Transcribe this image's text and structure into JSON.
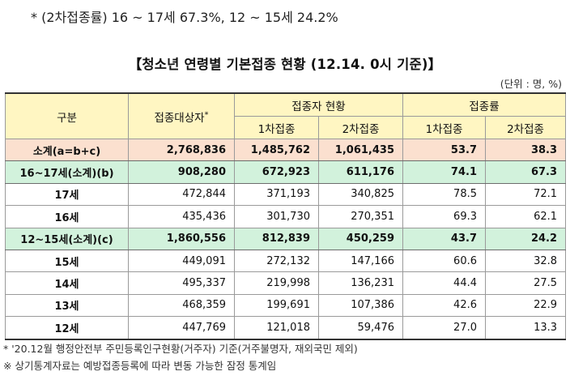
{
  "top_note": "* (2차접종률) 16 ~ 17세 67.3%, 12 ~ 15세 24.2%",
  "title": "【청소년 연령별 기본접종 현황 (12.14. 0시 기준)】",
  "unit": "(단위 : 명, %)",
  "header": {
    "category": "구분",
    "target": "접종대상자",
    "target_mark": "*",
    "vaccinated": "접종자 현황",
    "rate": "접종률",
    "dose1": "1차접종",
    "dose2": "2차접종"
  },
  "rows": [
    {
      "label": "소계(a=b+c)",
      "target": "2,768,836",
      "d1": "1,485,762",
      "d2": "1,061,435",
      "r1": "53.7",
      "r2": "38.3"
    },
    {
      "label": "16~17세(소계)(b)",
      "target": "908,280",
      "d1": "672,923",
      "d2": "611,176",
      "r1": "74.1",
      "r2": "67.3"
    },
    {
      "label": "17세",
      "target": "472,844",
      "d1": "371,193",
      "d2": "340,825",
      "r1": "78.5",
      "r2": "72.1"
    },
    {
      "label": "16세",
      "target": "435,436",
      "d1": "301,730",
      "d2": "270,351",
      "r1": "69.3",
      "r2": "62.1"
    },
    {
      "label": "12~15세(소계)(c)",
      "target": "1,860,556",
      "d1": "812,839",
      "d2": "450,259",
      "r1": "43.7",
      "r2": "24.2"
    },
    {
      "label": "15세",
      "target": "449,091",
      "d1": "272,132",
      "d2": "147,166",
      "r1": "60.6",
      "r2": "32.8"
    },
    {
      "label": "14세",
      "target": "495,337",
      "d1": "219,998",
      "d2": "136,231",
      "r1": "44.4",
      "r2": "27.5"
    },
    {
      "label": "13세",
      "target": "468,359",
      "d1": "199,691",
      "d2": "107,386",
      "r1": "42.6",
      "r2": "22.9"
    },
    {
      "label": "12세",
      "target": "447,769",
      "d1": "121,018",
      "d2": "59,476",
      "r1": "27.0",
      "r2": "13.3"
    }
  ],
  "footnotes": [
    "* '20.12월 행정안전부 주민등록인구현황(거주자) 기준(거주불명자, 재외국민 제외)",
    "※ 상기통계자료는 예방접종등록에 따라 변동 가능한 잠정 통계임"
  ]
}
